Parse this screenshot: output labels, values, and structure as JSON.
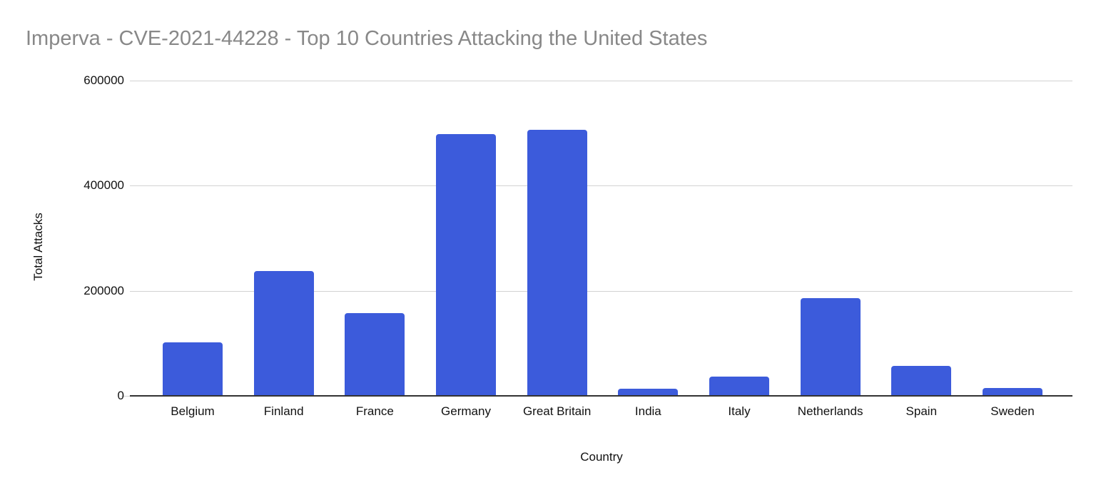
{
  "chart_data": {
    "type": "bar",
    "title": "Imperva - CVE-2021-44228 - Top 10 Countries Attacking the United States",
    "categories": [
      "Belgium",
      "Finland",
      "France",
      "Germany",
      "Great Britain",
      "India",
      "Italy",
      "Netherlands",
      "Spain",
      "Sweden"
    ],
    "values": [
      102000,
      238000,
      158000,
      498000,
      507000,
      13000,
      37000,
      186000,
      57000,
      15000
    ],
    "series_name": "Total Attacks",
    "xlabel": "Country",
    "ylabel": "Total Attacks",
    "ylim": [
      0,
      600000
    ],
    "yticks": [
      0,
      200000,
      400000,
      600000
    ],
    "grid": "horizontal-only",
    "legend": "none",
    "bar_color": "#3c5bdb"
  },
  "colors": {
    "bar": "#3c5bdb",
    "title": "#888888",
    "gridline": "#d2d2d2",
    "axis_line": "#333333",
    "text": "#111111",
    "background": "#ffffff"
  }
}
